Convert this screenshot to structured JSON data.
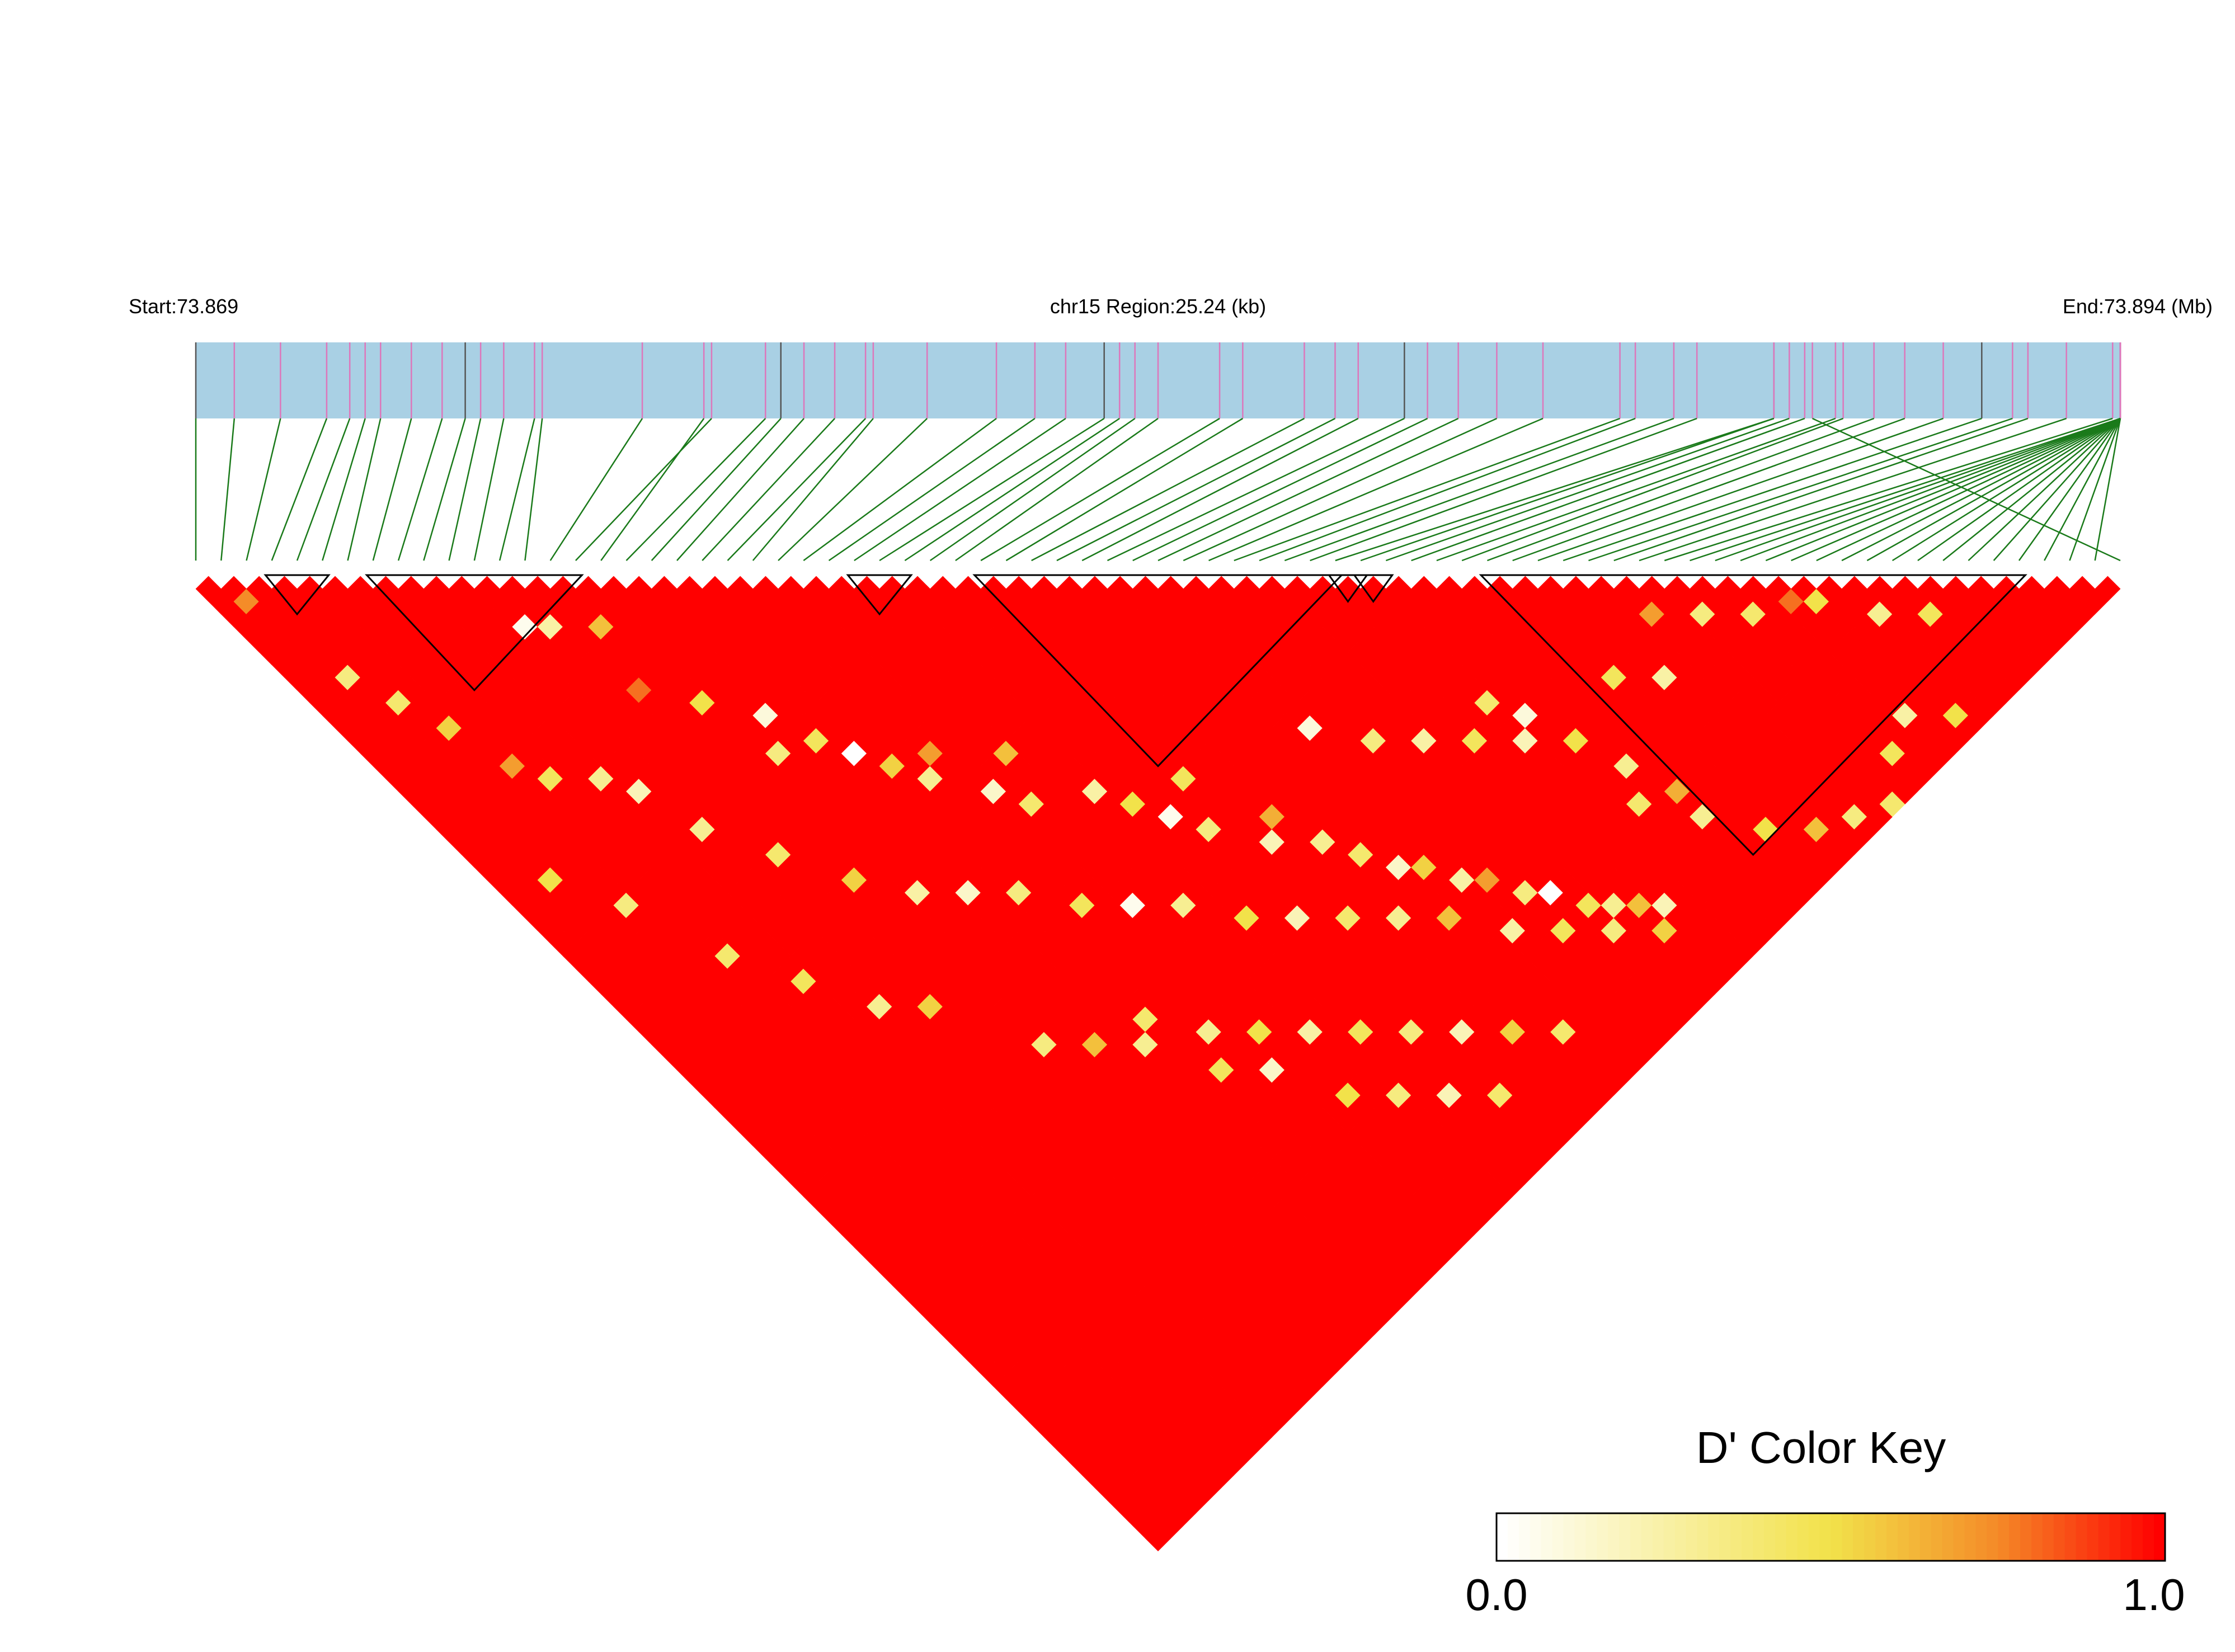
{
  "header": {
    "start_label": "Start:73.869",
    "region_label": "chr15 Region:25.24 (kb)",
    "end_label": "End:73.894 (Mb)"
  },
  "colors": {
    "track_fill": "#a9d0e4",
    "snp_line": "#dd77bb",
    "snp_line_dark": "#555555",
    "connector": "#1a7a1a",
    "block_outline": "#000000",
    "scale_low": "#ffffff",
    "scale_mid": "#f2e24a",
    "scale_high": "#ff0000"
  },
  "chart_data": {
    "type": "heatmap",
    "subtype": "LD triangle",
    "chromosome": "chr15",
    "region_start_mb": 73.869,
    "region_end_mb": 73.894,
    "region_length_kb": 25.24,
    "n_snps": 77,
    "snp_positions_mb": [
      73.869,
      73.8695,
      73.8701,
      73.8707,
      73.871,
      73.8712,
      73.8714,
      73.8718,
      73.8722,
      73.8725,
      73.8727,
      73.873,
      73.8734,
      73.8735,
      73.8748,
      73.8757,
      73.8756,
      73.8764,
      73.8766,
      73.8769,
      73.8773,
      73.8777,
      73.8778,
      73.8785,
      73.8794,
      73.8799,
      73.8803,
      73.8808,
      73.881,
      73.8812,
      73.8815,
      73.8823,
      73.8826,
      73.8834,
      73.8838,
      73.8841,
      73.8847,
      73.885,
      73.8854,
      73.8859,
      73.8865,
      73.8875,
      73.8877,
      73.8882,
      73.8885,
      73.8895,
      73.8895,
      73.8897,
      73.8899,
      73.8903,
      73.8904,
      73.8908,
      73.8912,
      73.8917,
      73.8922,
      73.8926,
      73.8928,
      73.8933,
      73.8939,
      73.8943,
      73.8946,
      73.8949,
      73.8953,
      73.8957,
      73.8963,
      73.8966,
      73.8969,
      73.8974,
      73.8979,
      73.8978,
      73.8986,
      73.8993,
      73.8999,
      73.8991,
      73.8995,
      73.8997,
      73.89
    ],
    "haplotype_blocks": [
      [
        3,
        5
      ],
      [
        7,
        15
      ],
      [
        26,
        28
      ],
      [
        31,
        45
      ],
      [
        45,
        46
      ],
      [
        46,
        47
      ],
      [
        51,
        72
      ]
    ],
    "dprime_scale": {
      "min": 0.0,
      "max": 1.0,
      "colors": [
        "white",
        "yellow",
        "orange",
        "red"
      ]
    },
    "dprime_majority_value": 1.0,
    "dprime_low_pairs": [
      {
        "i": 1,
        "j": 3,
        "d": 0.75
      },
      {
        "i": 2,
        "j": 10,
        "d": 0.35
      },
      {
        "i": 3,
        "j": 13,
        "d": 0.4
      },
      {
        "i": 4,
        "j": 16,
        "d": 0.55
      },
      {
        "i": 5,
        "j": 20,
        "d": 0.7
      },
      {
        "i": 6,
        "j": 22,
        "d": 0.45
      },
      {
        "i": 8,
        "j": 24,
        "d": 0.3
      },
      {
        "i": 9,
        "j": 26,
        "d": 0.2
      },
      {
        "i": 11,
        "j": 15,
        "d": 0.05
      },
      {
        "i": 12,
        "j": 16,
        "d": 0.25
      },
      {
        "i": 14,
        "j": 18,
        "d": 0.6
      },
      {
        "i": 13,
        "j": 22,
        "d": 0.8
      },
      {
        "i": 15,
        "j": 25,
        "d": 0.5
      },
      {
        "i": 16,
        "j": 30,
        "d": 0.35
      },
      {
        "i": 17,
        "j": 28,
        "d": 0.1
      },
      {
        "i": 18,
        "j": 31,
        "d": 0.45
      },
      {
        "i": 19,
        "j": 33,
        "d": 0.0
      },
      {
        "i": 20,
        "j": 35,
        "d": 0.55
      },
      {
        "i": 21,
        "j": 37,
        "d": 0.3
      },
      {
        "i": 22,
        "j": 36,
        "d": 0.7
      },
      {
        "i": 23,
        "j": 40,
        "d": 0.15
      },
      {
        "i": 24,
        "j": 42,
        "d": 0.4
      },
      {
        "i": 25,
        "j": 39,
        "d": 0.6
      },
      {
        "i": 27,
        "j": 44,
        "d": 0.25
      },
      {
        "i": 28,
        "j": 46,
        "d": 0.5
      },
      {
        "i": 29,
        "j": 48,
        "d": 0.05
      },
      {
        "i": 30,
        "j": 50,
        "d": 0.35
      },
      {
        "i": 31,
        "j": 47,
        "d": 0.45
      },
      {
        "i": 32,
        "j": 53,
        "d": 0.2
      },
      {
        "i": 33,
        "j": 52,
        "d": 0.65
      },
      {
        "i": 34,
        "j": 55,
        "d": 0.3
      },
      {
        "i": 35,
        "j": 57,
        "d": 0.4
      },
      {
        "i": 36,
        "j": 59,
        "d": 0.15
      },
      {
        "i": 37,
        "j": 60,
        "d": 0.55
      },
      {
        "i": 38,
        "j": 62,
        "d": 0.25
      },
      {
        "i": 39,
        "j": 63,
        "d": 0.7
      },
      {
        "i": 40,
        "j": 65,
        "d": 0.35
      },
      {
        "i": 41,
        "j": 66,
        "d": 0.0
      },
      {
        "i": 42,
        "j": 68,
        "d": 0.45
      },
      {
        "i": 43,
        "j": 69,
        "d": 0.3
      },
      {
        "i": 44,
        "j": 70,
        "d": 0.6
      },
      {
        "i": 45,
        "j": 71,
        "d": 0.2
      },
      {
        "i": 46,
        "j": 56,
        "d": 0.4
      },
      {
        "i": 47,
        "j": 58,
        "d": 0.1
      },
      {
        "i": 48,
        "j": 61,
        "d": 0.5
      },
      {
        "i": 49,
        "j": 64,
        "d": 0.3
      },
      {
        "i": 50,
        "j": 67,
        "d": 0.65
      },
      {
        "i": 52,
        "j": 60,
        "d": 0.45
      },
      {
        "i": 54,
        "j": 62,
        "d": 0.25
      },
      {
        "i": 56,
        "j": 59,
        "d": 0.7
      },
      {
        "i": 58,
        "j": 61,
        "d": 0.35
      },
      {
        "i": 60,
        "j": 63,
        "d": 0.4
      },
      {
        "i": 62,
        "j": 64,
        "d": 0.8
      },
      {
        "i": 63,
        "j": 65,
        "d": 0.5
      },
      {
        "i": 65,
        "j": 68,
        "d": 0.3
      },
      {
        "i": 67,
        "j": 70,
        "d": 0.45
      },
      {
        "i": 10,
        "j": 30,
        "d": 0.3
      },
      {
        "i": 12,
        "j": 34,
        "d": 0.4
      },
      {
        "i": 14,
        "j": 38,
        "d": 0.55
      },
      {
        "i": 16,
        "j": 41,
        "d": 0.25
      },
      {
        "i": 18,
        "j": 43,
        "d": 0.15
      },
      {
        "i": 20,
        "j": 45,
        "d": 0.35
      },
      {
        "i": 22,
        "j": 48,
        "d": 0.45
      },
      {
        "i": 24,
        "j": 50,
        "d": 0.05
      },
      {
        "i": 26,
        "j": 52,
        "d": 0.3
      },
      {
        "i": 28,
        "j": 55,
        "d": 0.5
      },
      {
        "i": 30,
        "j": 57,
        "d": 0.2
      },
      {
        "i": 32,
        "j": 59,
        "d": 0.4
      },
      {
        "i": 34,
        "j": 61,
        "d": 0.3
      },
      {
        "i": 36,
        "j": 63,
        "d": 0.6
      },
      {
        "i": 38,
        "j": 66,
        "d": 0.25
      },
      {
        "i": 40,
        "j": 68,
        "d": 0.45
      },
      {
        "i": 42,
        "j": 70,
        "d": 0.35
      },
      {
        "i": 44,
        "j": 72,
        "d": 0.55
      },
      {
        "i": 20,
        "j": 55,
        "d": 0.4
      },
      {
        "i": 22,
        "j": 58,
        "d": 0.3
      },
      {
        "i": 24,
        "j": 60,
        "d": 0.5
      },
      {
        "i": 26,
        "j": 62,
        "d": 0.25
      },
      {
        "i": 28,
        "j": 64,
        "d": 0.45
      },
      {
        "i": 30,
        "j": 66,
        "d": 0.35
      },
      {
        "i": 32,
        "j": 68,
        "d": 0.2
      },
      {
        "i": 34,
        "j": 70,
        "d": 0.55
      },
      {
        "i": 36,
        "j": 72,
        "d": 0.4
      },
      {
        "i": 15,
        "j": 52,
        "d": 0.35
      },
      {
        "i": 17,
        "j": 54,
        "d": 0.6
      },
      {
        "i": 19,
        "j": 56,
        "d": 0.3
      },
      {
        "i": 21,
        "j": 60,
        "d": 0.45
      },
      {
        "i": 23,
        "j": 62,
        "d": 0.15
      },
      {
        "i": 25,
        "j": 66,
        "d": 0.5
      },
      {
        "i": 27,
        "j": 68,
        "d": 0.35
      },
      {
        "i": 29,
        "j": 70,
        "d": 0.2
      },
      {
        "i": 31,
        "j": 72,
        "d": 0.4
      },
      {
        "i": 8,
        "j": 40,
        "d": 0.45
      },
      {
        "i": 10,
        "j": 44,
        "d": 0.3
      },
      {
        "i": 12,
        "j": 46,
        "d": 0.55
      },
      {
        "i": 6,
        "j": 36,
        "d": 0.4
      },
      {
        "i": 4,
        "j": 30,
        "d": 0.35
      },
      {
        "i": 2,
        "j": 26,
        "d": 0.5
      },
      {
        "i": 38,
        "j": 50,
        "d": 0.1
      },
      {
        "i": 40,
        "j": 53,
        "d": 0.35
      },
      {
        "i": 42,
        "j": 55,
        "d": 0.25
      },
      {
        "i": 44,
        "j": 57,
        "d": 0.45
      },
      {
        "i": 46,
        "j": 59,
        "d": 0.2
      },
      {
        "i": 48,
        "j": 66,
        "d": 0.4
      },
      {
        "i": 50,
        "j": 69,
        "d": 0.3
      },
      {
        "i": 52,
        "j": 72,
        "d": 0.5
      },
      {
        "i": 54,
        "j": 74,
        "d": 0.6
      },
      {
        "i": 56,
        "j": 75,
        "d": 0.35
      },
      {
        "i": 60,
        "j": 74,
        "d": 0.45
      },
      {
        "i": 62,
        "j": 73,
        "d": 0.25
      },
      {
        "i": 64,
        "j": 75,
        "d": 0.5
      },
      {
        "i": 58,
        "j": 76,
        "d": 0.4
      }
    ],
    "legend": {
      "title": "D' Color Key",
      "min_label": "0.0",
      "max_label": "1.0"
    }
  }
}
